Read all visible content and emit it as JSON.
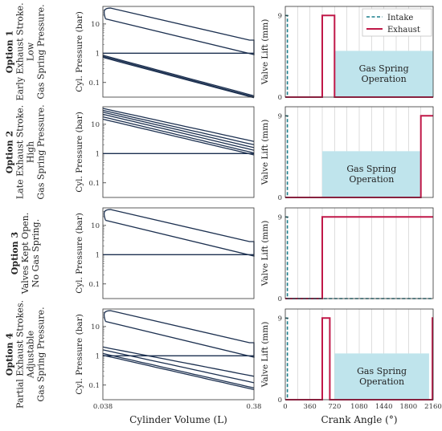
{
  "chart_data": {
    "type": "line",
    "rows": [
      {
        "title": "Option 1",
        "desc": [
          "Early Exhaust Stroke.",
          "Low",
          "Gas Spring Pressure."
        ],
        "pv": {
          "ylabel": "Cyl. Pressure (bar)",
          "yticks": [
            "10",
            "1",
            "0.1"
          ]
        },
        "lift": {
          "ylabel": "Valve Lift (mm)",
          "intake": [
            [
              0,
              9
            ],
            [
              30,
              9
            ],
            [
              30,
              0
            ]
          ],
          "exhaust": [
            [
              0,
              0
            ],
            [
              540,
              0
            ],
            [
              540,
              9
            ],
            [
              720,
              9
            ],
            [
              720,
              0
            ],
            [
              2160,
              0
            ]
          ],
          "gas_spring": {
            "from": 720,
            "to": 2160,
            "label": [
              "Gas Spring",
              "Operation"
            ]
          },
          "legend": [
            "Intake",
            "Exhaust"
          ]
        }
      },
      {
        "title": "Option 2",
        "desc": [
          "Late Exhaust Stroke.",
          "High",
          "Gas Spring Pressure."
        ],
        "pv": {
          "ylabel": "Cyl. Pressure (bar)",
          "yticks": [
            "10",
            "1",
            "0.1"
          ]
        },
        "lift": {
          "ylabel": "Valve Lift (mm)",
          "intake": [
            [
              0,
              9
            ],
            [
              30,
              9
            ],
            [
              30,
              0
            ]
          ],
          "exhaust": [
            [
              0,
              0
            ],
            [
              1980,
              0
            ],
            [
              1980,
              9
            ],
            [
              2160,
              9
            ]
          ],
          "gas_spring": {
            "from": 540,
            "to": 1980,
            "label": [
              "Gas Spring",
              "Operation"
            ]
          }
        }
      },
      {
        "title": "Option 3",
        "desc": [
          "Valves Kept Open.",
          "No Gas Spring."
        ],
        "pv": {
          "ylabel": "Cyl. Pressure (bar)",
          "yticks": [
            "10",
            "1",
            "0.1"
          ]
        },
        "lift": {
          "ylabel": "Valve Lift (mm)",
          "intake": [
            [
              0,
              9
            ],
            [
              30,
              9
            ],
            [
              30,
              0
            ],
            [
              2160,
              0
            ]
          ],
          "exhaust": [
            [
              0,
              0
            ],
            [
              540,
              0
            ],
            [
              540,
              9
            ],
            [
              2160,
              9
            ]
          ],
          "gas_spring": null
        }
      },
      {
        "title": "Option 4",
        "desc": [
          "Partial Exhaust Strokes.",
          "Adjustable",
          "Gas Spring Pressure."
        ],
        "pv": {
          "ylabel": "Cyl. Pressure (bar)",
          "yticks": [
            "10",
            "1",
            "0.1"
          ]
        },
        "lift": {
          "ylabel": "Valve Lift (mm)",
          "intake": [
            [
              0,
              9
            ],
            [
              30,
              9
            ],
            [
              30,
              0
            ]
          ],
          "exhaust": [
            [
              0,
              0
            ],
            [
              540,
              0
            ],
            [
              540,
              9
            ],
            [
              650,
              9
            ],
            [
              650,
              0
            ],
            [
              2150,
              0
            ],
            [
              2150,
              9
            ],
            [
              2160,
              9
            ]
          ],
          "gas_spring": {
            "from": 720,
            "to": 2100,
            "label": [
              "Gas Spring",
              "Operation"
            ]
          }
        }
      }
    ],
    "pv_xticks": [
      "0.038",
      "0.38"
    ],
    "pv_xlabel": "Cylinder Volume (L)",
    "lift_xticks": [
      "0",
      "360",
      "720",
      "1080",
      "1440",
      "1800",
      "2160"
    ],
    "lift_xlabel": "Crank Angle (°)",
    "lift_yticks": [
      "0",
      "9"
    ],
    "lift_xlim": [
      0,
      2160
    ],
    "lift_ylim": [
      0,
      10
    ],
    "pv_ylim_log": [
      -1.5,
      1.6
    ]
  }
}
